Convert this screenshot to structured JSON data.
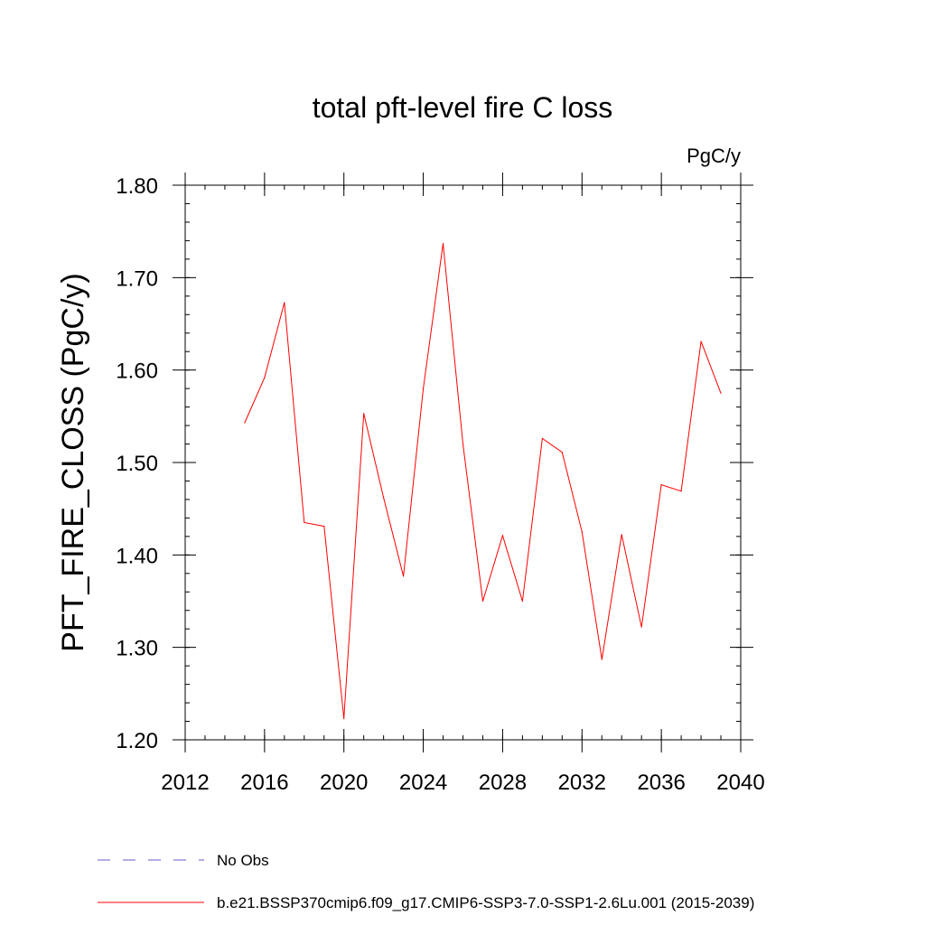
{
  "chart_data": {
    "type": "line",
    "title": "total pft-level fire C loss",
    "units_label": "PgC/y",
    "ylabel": "PFT_FIRE_CLOSS  (PgC/y)",
    "xlabel": "",
    "xlim": [
      2012,
      2040
    ],
    "ylim": [
      1.2,
      1.8
    ],
    "x_ticks": [
      2012,
      2016,
      2020,
      2024,
      2028,
      2032,
      2036,
      2040
    ],
    "y_ticks": [
      "1.20",
      "1.30",
      "1.40",
      "1.50",
      "1.60",
      "1.70",
      "1.80"
    ],
    "grid": false,
    "series": [
      {
        "name": "b.e21.BSSP370cmip6.f09_g17.CMIP6-SSP3-7.0-SSP1-2.6Lu.001 (2015-2039)",
        "color": "#ff0000",
        "x": [
          2015,
          2016,
          2017,
          2018,
          2019,
          2020,
          2021,
          2022,
          2023,
          2024,
          2025,
          2026,
          2027,
          2028,
          2029,
          2030,
          2031,
          2032,
          2033,
          2034,
          2035,
          2036,
          2037,
          2038,
          2039
        ],
        "values": [
          1.543,
          1.592,
          1.673,
          1.435,
          1.431,
          1.223,
          1.553,
          1.462,
          1.377,
          1.58,
          1.737,
          1.52,
          1.35,
          1.421,
          1.35,
          1.526,
          1.511,
          1.425,
          1.287,
          1.422,
          1.322,
          1.476,
          1.469,
          1.631,
          1.575
        ]
      }
    ],
    "legend": [
      {
        "label": "No Obs",
        "style": "dashed",
        "color": "#6a5acd"
      },
      {
        "label": "b.e21.BSSP370cmip6.f09_g17.CMIP6-SSP3-7.0-SSP1-2.6Lu.001 (2015-2039)",
        "style": "solid",
        "color": "#ff0000"
      }
    ],
    "legend_position": "bottom"
  }
}
